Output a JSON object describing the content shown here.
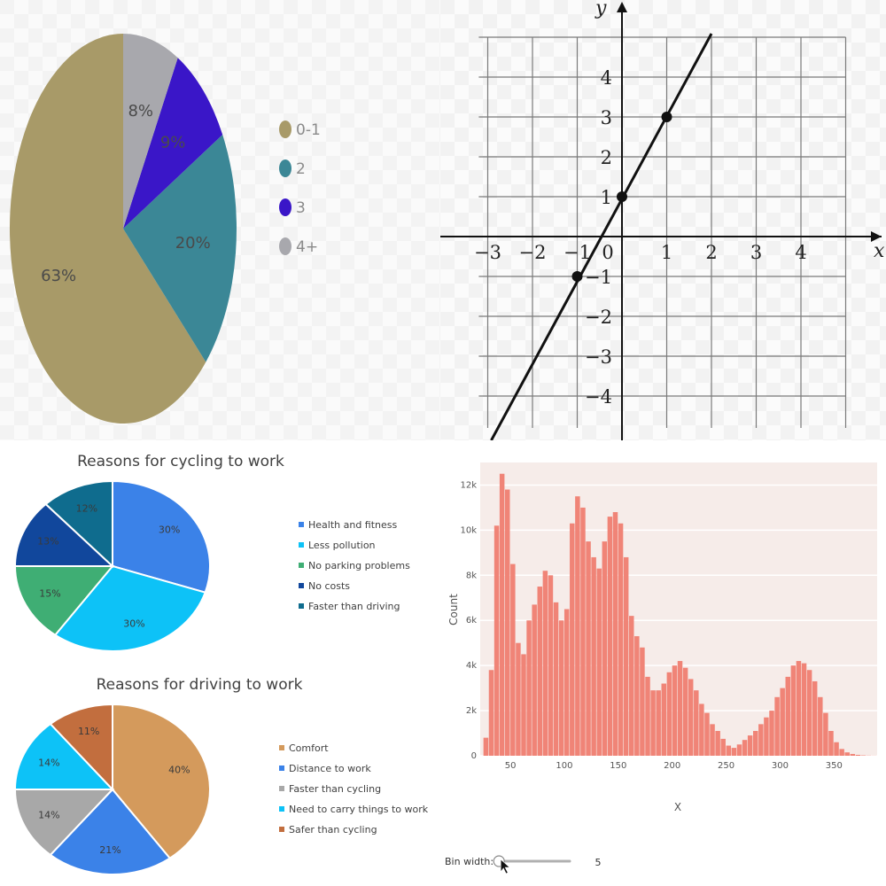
{
  "chart_data": [
    {
      "type": "pie",
      "title": "",
      "categories": [
        "0-1",
        "2",
        "3",
        "4+"
      ],
      "values": [
        63,
        20,
        9,
        8
      ],
      "labels": [
        "63%",
        "20%",
        "9%",
        "8%"
      ],
      "colors": [
        "#a89a68",
        "#3b8796",
        "#3a16c8",
        "#a8a8ad"
      ],
      "legend_position": "right"
    },
    {
      "type": "line",
      "title": "",
      "xlabel": "x",
      "ylabel": "y",
      "xlim": [
        -3,
        5
      ],
      "ylim": [
        -4,
        5
      ],
      "x_ticks": [
        -3,
        -2,
        -1,
        0,
        1,
        2,
        3,
        4
      ],
      "y_ticks": [
        -4,
        -3,
        -2,
        -1,
        1,
        2,
        3,
        4
      ],
      "x_tick_labels": [
        "−3",
        "−2",
        "−1",
        "0",
        "1",
        "2",
        "3",
        "4"
      ],
      "y_tick_labels": [
        "−4",
        "−3",
        "−2",
        "−1",
        "1",
        "2",
        "3",
        "4"
      ],
      "grid": true,
      "series": [
        {
          "x": [
            -3,
            2
          ],
          "y": [
            -5,
            5
          ]
        }
      ],
      "points": [
        {
          "x": -1,
          "y": -1
        },
        {
          "x": 0,
          "y": 1
        },
        {
          "x": 1,
          "y": 3
        }
      ]
    },
    {
      "type": "pie",
      "title": "Reasons for cycling to work",
      "categories": [
        "Health and fitness",
        "Less pollution",
        "No parking problems",
        "No costs",
        "Faster than driving"
      ],
      "values": [
        30,
        30,
        15,
        13,
        12
      ],
      "labels": [
        "30%",
        "30%",
        "15%",
        "13%",
        "12%"
      ],
      "colors": [
        "#3b82e8",
        "#0dc2f7",
        "#3fae74",
        "#11479c",
        "#0f6c8e"
      ],
      "legend_position": "right"
    },
    {
      "type": "pie",
      "title": "Reasons for driving to work",
      "categories": [
        "Comfort",
        "Distance to work",
        "Faster than cycling",
        "Need to carry things to work",
        "Safer than cycling"
      ],
      "values": [
        40,
        21,
        14,
        14,
        11
      ],
      "labels": [
        "40%",
        "21%",
        "14%",
        "14%",
        "11%"
      ],
      "colors": [
        "#d49a5c",
        "#3b82e8",
        "#a8a8a8",
        "#0dc2f7",
        "#c26e3e"
      ],
      "legend_position": "right"
    },
    {
      "type": "bar",
      "title": "",
      "xlabel": "X",
      "ylabel": "Count",
      "xlim": [
        22,
        390
      ],
      "ylim": [
        0,
        13000
      ],
      "x_ticks": [
        50,
        100,
        150,
        200,
        250,
        300,
        350
      ],
      "y_ticks": [
        0,
        2000,
        4000,
        6000,
        8000,
        10000,
        12000
      ],
      "y_tick_labels": [
        "0",
        "2k",
        "4k",
        "6k",
        "8k",
        "10k",
        "12k"
      ],
      "bin_width": 5,
      "bin_start": 25,
      "color": "#f08477",
      "values": [
        800,
        3800,
        10200,
        12500,
        11800,
        8500,
        5000,
        4500,
        6000,
        6700,
        7500,
        8200,
        8000,
        6800,
        6000,
        6500,
        10300,
        11500,
        11000,
        9500,
        8800,
        8300,
        9500,
        10600,
        10800,
        10300,
        8800,
        6200,
        5300,
        4800,
        3500,
        2900,
        2900,
        3200,
        3700,
        4000,
        4200,
        3900,
        3400,
        2900,
        2300,
        1900,
        1400,
        1100,
        750,
        450,
        350,
        500,
        700,
        900,
        1100,
        1400,
        1700,
        2000,
        2600,
        3000,
        3500,
        4000,
        4200,
        4100,
        3800,
        3300,
        2600,
        1900,
        1100,
        600,
        300,
        150,
        80,
        40,
        20,
        10,
        5
      ]
    }
  ],
  "slider": {
    "label": "Bin width:",
    "value": "5",
    "fraction": 0.05
  }
}
